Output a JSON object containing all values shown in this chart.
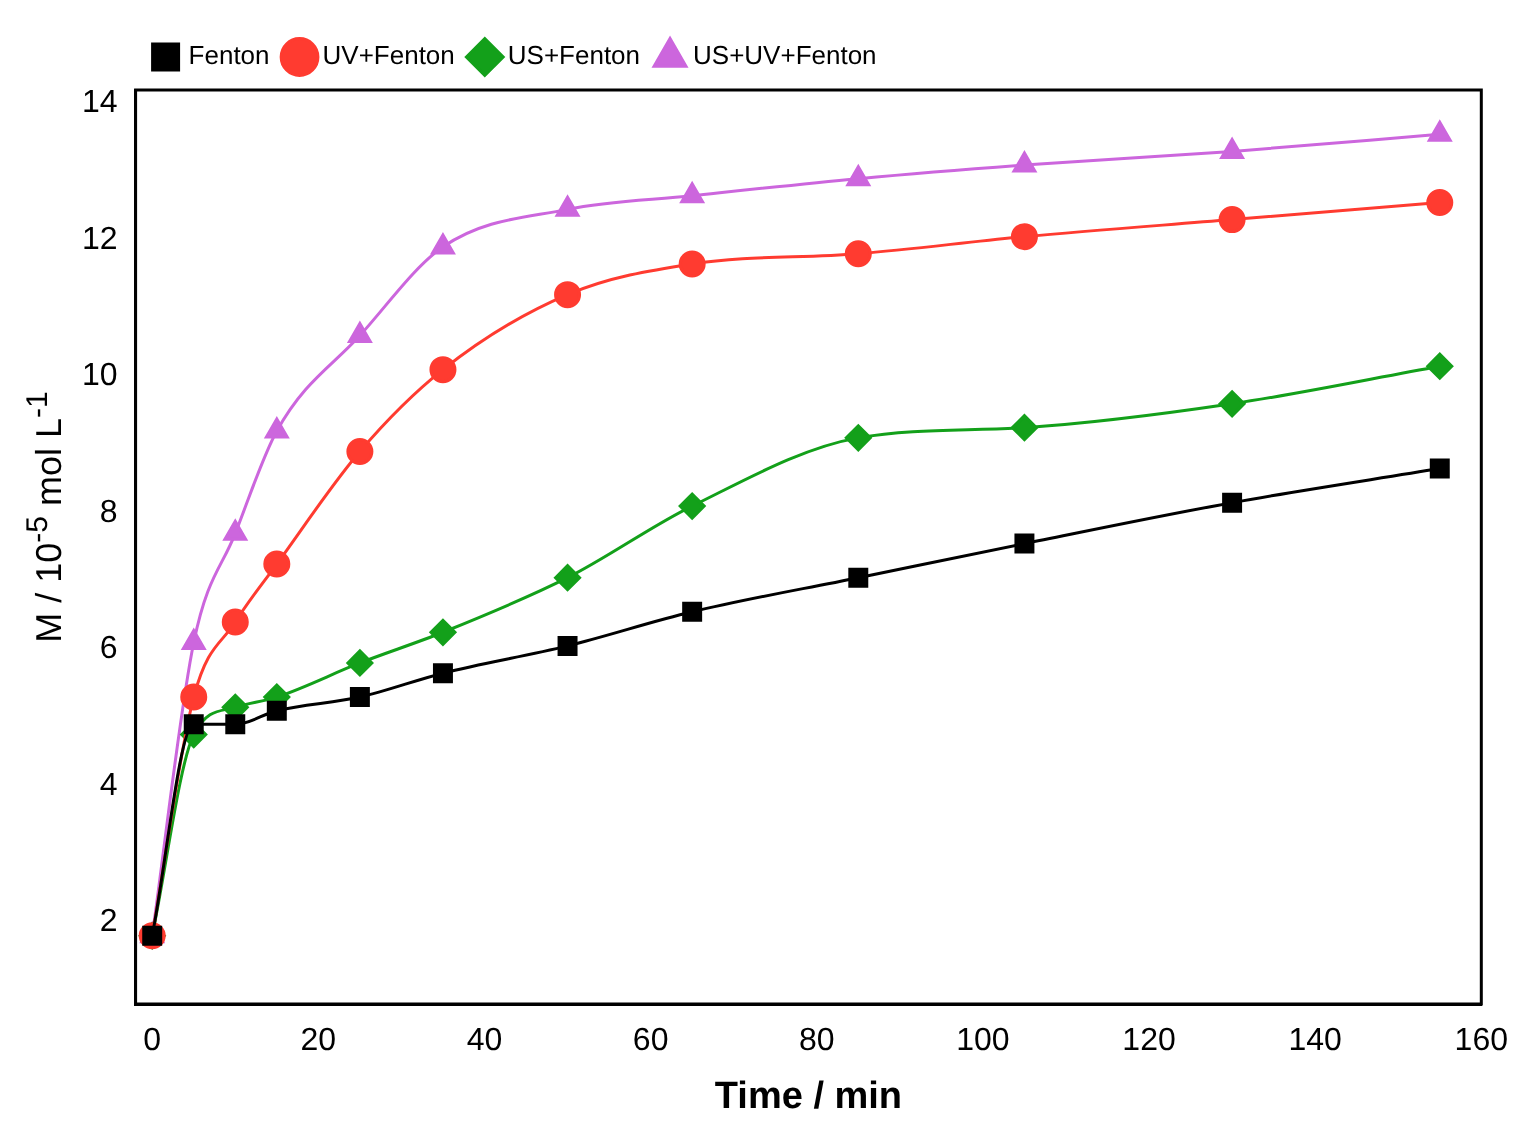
{
  "chart_data": {
    "type": "line",
    "xlabel": "Time / min",
    "ylabel": "M / 10$^{-5}$ mol L$^{-1}$",
    "x": [
      0,
      5,
      10,
      15,
      25,
      35,
      50,
      65,
      85,
      105,
      130,
      155
    ],
    "series": [
      {
        "name": "Fenton",
        "color": "#000000",
        "marker": "square",
        "values": [
          1.8,
          4.9,
          4.9,
          5.1,
          5.3,
          5.65,
          6.05,
          6.55,
          7.05,
          7.55,
          8.15,
          8.65
        ]
      },
      {
        "name": "UV+Fenton",
        "color": "#ff3b30",
        "marker": "circle",
        "values": [
          1.8,
          5.3,
          6.4,
          7.25,
          8.9,
          10.1,
          11.2,
          11.65,
          11.8,
          12.05,
          12.3,
          12.55
        ]
      },
      {
        "name": "US+Fenton",
        "color": "#13a01a",
        "marker": "diamond",
        "values": [
          1.8,
          4.75,
          5.15,
          5.3,
          5.8,
          6.25,
          7.05,
          8.1,
          9.1,
          9.25,
          9.6,
          10.15
        ]
      },
      {
        "name": "US+UV+Fenton",
        "color": "#cc66dd",
        "marker": "triangle",
        "values": [
          1.8,
          6.1,
          7.7,
          9.2,
          10.6,
          11.9,
          12.45,
          12.65,
          12.9,
          13.1,
          13.3,
          13.55
        ]
      }
    ],
    "xlim": [
      -2,
      160
    ],
    "xticks": [
      0,
      20,
      40,
      60,
      80,
      100,
      120,
      140,
      160
    ],
    "ylim": [
      0.8,
      14.2
    ],
    "yticks": [
      2,
      4,
      6,
      8,
      10,
      12,
      14
    ],
    "legend": "top left"
  }
}
